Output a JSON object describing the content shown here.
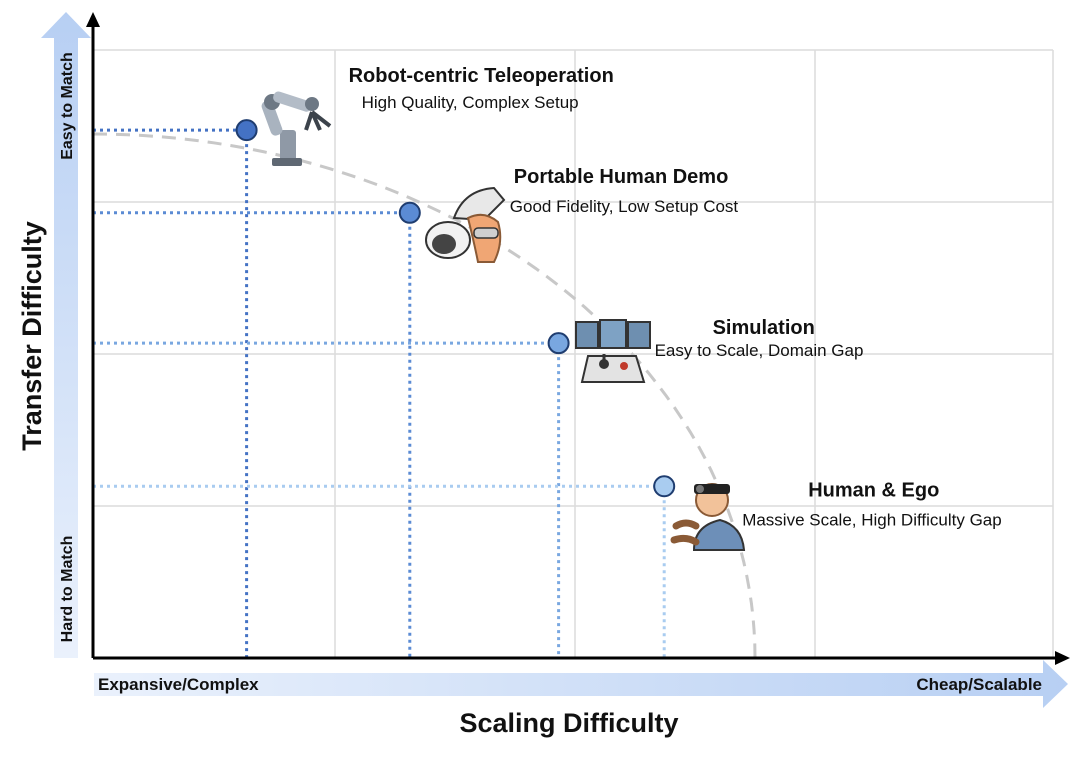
{
  "chart_data": {
    "type": "scatter",
    "title": "",
    "xlabel": "Scaling Difficulty",
    "ylabel": "Transfer Difficulty",
    "x_scale_labels": {
      "low": "Expansive/Complex",
      "high": "Cheap/Scalable"
    },
    "y_scale_labels": {
      "low": "Hard to Match",
      "high": "Easy to Match"
    },
    "xlim": [
      0,
      1
    ],
    "ylim": [
      0,
      1
    ],
    "grid": true,
    "frontier": {
      "style": "dashed",
      "color": "#c8c8c8",
      "shape": "quarter-ellipse"
    },
    "points": [
      {
        "name": "Robot-centric Teleoperation",
        "subtitle": "High Quality, Complex Setup",
        "x": 0.16,
        "y": 0.83,
        "color": "#4472c4",
        "icon": "robot-arm-icon"
      },
      {
        "name": "Portable Human Demo",
        "subtitle": "Good Fidelity, Low Setup Cost",
        "x": 0.33,
        "y": 0.7,
        "color": "#5b8bd4",
        "icon": "handheld-gripper-icon"
      },
      {
        "name": "Simulation",
        "subtitle": "Easy to Scale, Domain Gap",
        "x": 0.485,
        "y": 0.495,
        "color": "#79a7e0",
        "icon": "simulator-console-icon"
      },
      {
        "name": "Human & Ego",
        "subtitle": "Massive Scale, High Difficulty Gap",
        "x": 0.595,
        "y": 0.27,
        "color": "#a9ccf0",
        "icon": "head-camera-human-icon"
      }
    ],
    "colors": {
      "axis": "#000000",
      "grid": "#dcdcdc",
      "arrow_light": "#e3edfb",
      "arrow_dark": "#b9d0f2"
    }
  }
}
